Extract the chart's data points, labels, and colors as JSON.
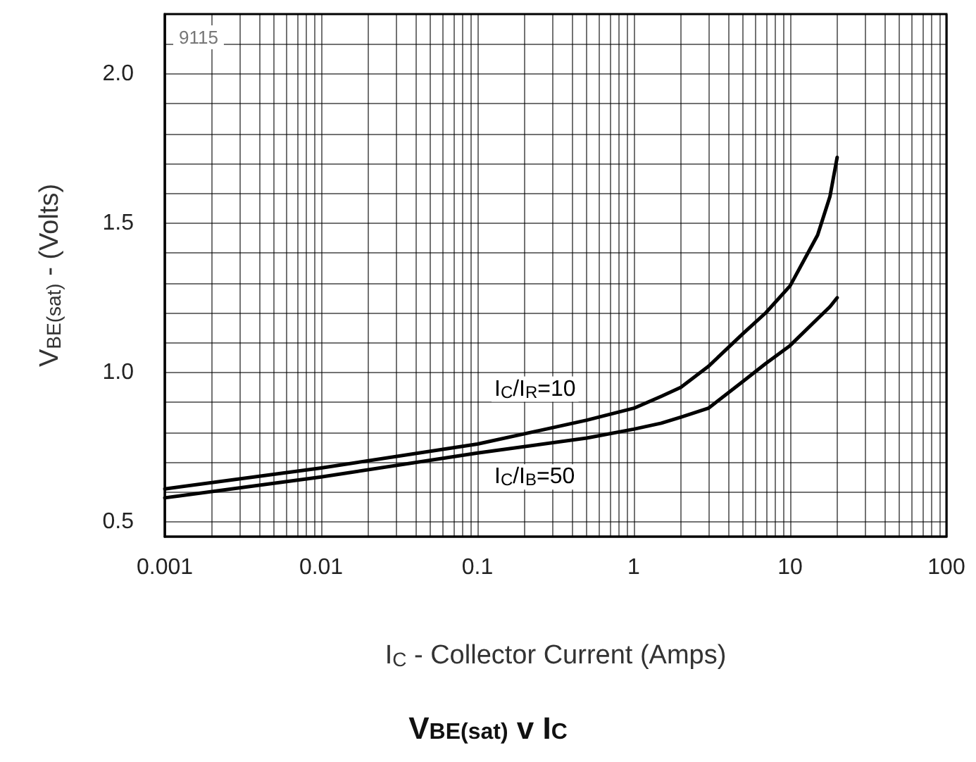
{
  "chart_data": {
    "type": "line",
    "title": "V$_{BE(sat)}$ v I$_{C}$",
    "xlabel": "I$_{C}$ - Collector Current (Amps)",
    "ylabel": "V$_{BE(sat)}$ - (Volts)",
    "annotations": [
      "9115"
    ],
    "log": "x",
    "grid": true,
    "legend": false,
    "marker": "none",
    "line_style": "solid",
    "xlim": [
      0.001,
      100
    ],
    "xticks": [
      0.001,
      {
        "value": 0.002,
        "label": null
      },
      {
        "value": 0.003,
        "label": null
      },
      {
        "value": 0.004,
        "label": null
      },
      {
        "value": 0.005,
        "label": null
      },
      {
        "value": 0.006,
        "label": null
      },
      {
        "value": 0.007,
        "label": null
      },
      {
        "value": 0.008,
        "label": null
      },
      {
        "value": 0.009,
        "label": null
      },
      0.01,
      {
        "value": 0.02,
        "label": null
      },
      {
        "value": 0.03,
        "label": null
      },
      {
        "value": 0.04,
        "label": null
      },
      {
        "value": 0.05,
        "label": null
      },
      {
        "value": 0.06,
        "label": null
      },
      {
        "value": 0.07,
        "label": null
      },
      {
        "value": 0.08,
        "label": null
      },
      {
        "value": 0.09,
        "label": null
      },
      0.1,
      {
        "value": 0.2,
        "label": null
      },
      {
        "value": 0.3,
        "label": null
      },
      {
        "value": 0.4,
        "label": null
      },
      {
        "value": 0.5,
        "label": null
      },
      {
        "value": 0.6,
        "label": null
      },
      {
        "value": 0.7,
        "label": null
      },
      {
        "value": 0.8,
        "label": null
      },
      {
        "value": 0.9,
        "label": null
      },
      1,
      {
        "value": 2,
        "label": null
      },
      {
        "value": 3,
        "label": null
      },
      {
        "value": 4,
        "label": null
      },
      {
        "value": 5,
        "label": null
      },
      {
        "value": 6,
        "label": null
      },
      {
        "value": 7,
        "label": null
      },
      {
        "value": 8,
        "label": null
      },
      {
        "value": 9,
        "label": null
      },
      10,
      {
        "value": 20,
        "label": null
      },
      {
        "value": 30,
        "label": null
      },
      {
        "value": 40,
        "label": null
      },
      {
        "value": 50,
        "label": null
      },
      {
        "value": 60,
        "label": null
      },
      {
        "value": 70,
        "label": null
      },
      {
        "value": 80,
        "label": null
      },
      {
        "value": 90,
        "label": null
      },
      100
    ],
    "ylim": [
      0.45,
      2.2
    ],
    "yticks": [
      0.5,
      {
        "value": 0.6,
        "label": null
      },
      {
        "value": 0.7,
        "label": null
      },
      {
        "value": 0.8,
        "label": null
      },
      {
        "value": 0.9,
        "label": null
      },
      {
        "value": 1,
        "label": "1.0"
      },
      {
        "value": 1.1,
        "label": null
      },
      {
        "value": 1.2,
        "label": null
      },
      {
        "value": 1.3,
        "label": null
      },
      {
        "value": 1.4,
        "label": null
      },
      1.5,
      {
        "value": 1.6,
        "label": null
      },
      {
        "value": 1.7,
        "label": null
      },
      {
        "value": 1.8,
        "label": null
      },
      {
        "value": 1.9,
        "label": null
      },
      {
        "value": 2,
        "label": "2.0"
      },
      {
        "value": 2.1,
        "label": null
      }
    ],
    "x": [
      0.001,
      0.01,
      0.1,
      0.5,
      1,
      1.5,
      2,
      3,
      5,
      7,
      10,
      15,
      18,
      20
    ],
    "series": [
      {
        "name": "I$_{C}$/I$_{R}$=10",
        "color": "#000000",
        "values": [
          0.61,
          0.68,
          0.76,
          0.84,
          0.88,
          0.92,
          0.95,
          1.02,
          1.13,
          1.2,
          1.29,
          1.46,
          1.59,
          1.72
        ]
      },
      {
        "name": "I$_{C}$/I$_{B}$=50",
        "color": "#000000",
        "values": [
          0.58,
          0.65,
          0.73,
          0.78,
          0.81,
          0.83,
          0.85,
          0.88,
          0.97,
          1.03,
          1.09,
          1.18,
          1.22,
          1.25
        ]
      }
    ]
  }
}
